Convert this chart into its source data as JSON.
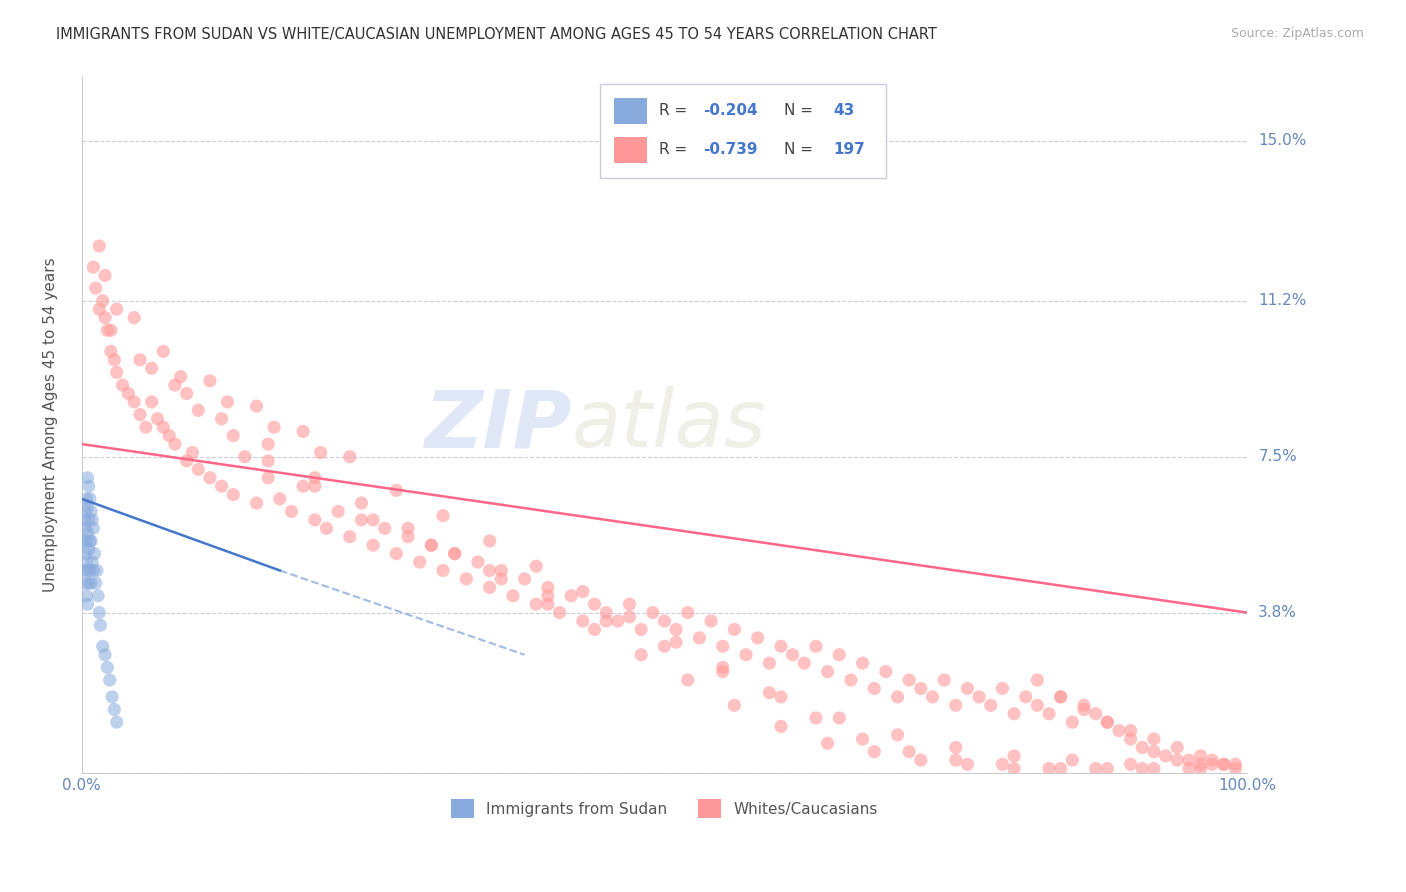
{
  "title": "IMMIGRANTS FROM SUDAN VS WHITE/CAUCASIAN UNEMPLOYMENT AMONG AGES 45 TO 54 YEARS CORRELATION CHART",
  "source": "Source: ZipAtlas.com",
  "ylabel": "Unemployment Among Ages 45 to 54 years",
  "xlim": [
    0.0,
    1.0
  ],
  "ylim": [
    0.0,
    0.165
  ],
  "yticks": [
    0.0,
    0.038,
    0.075,
    0.112,
    0.15
  ],
  "ytick_labels": [
    "",
    "3.8%",
    "7.5%",
    "11.2%",
    "15.0%"
  ],
  "xtick_labels": [
    "0.0%",
    "100.0%"
  ],
  "color_blue": "#88AADD",
  "color_pink": "#FF9999",
  "color_blue_line": "#4477CC",
  "color_pink_line": "#FF6688",
  "color_text_dark": "#444444",
  "color_value_blue": "#4477CC",
  "color_axis_labels": "#6688BB",
  "color_source": "#AAAAAA",
  "watermark_zip": "ZIP",
  "watermark_atlas": "atlas",
  "background_color": "#FFFFFF",
  "grid_color": "#CCCCDD",
  "legend_label1": "Immigrants from Sudan",
  "legend_label2": "Whites/Caucasians",
  "blue_x": [
    0.001,
    0.002,
    0.002,
    0.003,
    0.003,
    0.003,
    0.003,
    0.004,
    0.004,
    0.004,
    0.004,
    0.005,
    0.005,
    0.005,
    0.005,
    0.005,
    0.006,
    0.006,
    0.006,
    0.006,
    0.007,
    0.007,
    0.007,
    0.008,
    0.008,
    0.008,
    0.009,
    0.009,
    0.01,
    0.01,
    0.011,
    0.012,
    0.013,
    0.014,
    0.015,
    0.016,
    0.018,
    0.02,
    0.022,
    0.024,
    0.026,
    0.028,
    0.03
  ],
  "blue_y": [
    0.055,
    0.06,
    0.048,
    0.058,
    0.062,
    0.052,
    0.045,
    0.065,
    0.055,
    0.05,
    0.042,
    0.07,
    0.063,
    0.057,
    0.048,
    0.04,
    0.068,
    0.06,
    0.053,
    0.045,
    0.065,
    0.055,
    0.048,
    0.062,
    0.055,
    0.045,
    0.06,
    0.05,
    0.058,
    0.048,
    0.052,
    0.045,
    0.048,
    0.042,
    0.038,
    0.035,
    0.03,
    0.028,
    0.025,
    0.022,
    0.018,
    0.015,
    0.012
  ],
  "pink_x": [
    0.01,
    0.012,
    0.015,
    0.018,
    0.02,
    0.022,
    0.025,
    0.028,
    0.03,
    0.035,
    0.04,
    0.045,
    0.05,
    0.055,
    0.06,
    0.065,
    0.07,
    0.075,
    0.08,
    0.09,
    0.095,
    0.1,
    0.11,
    0.12,
    0.13,
    0.14,
    0.15,
    0.16,
    0.17,
    0.18,
    0.19,
    0.2,
    0.21,
    0.22,
    0.23,
    0.24,
    0.25,
    0.26,
    0.27,
    0.28,
    0.29,
    0.3,
    0.31,
    0.32,
    0.33,
    0.34,
    0.35,
    0.36,
    0.37,
    0.38,
    0.39,
    0.4,
    0.41,
    0.42,
    0.43,
    0.44,
    0.45,
    0.46,
    0.47,
    0.48,
    0.49,
    0.5,
    0.51,
    0.52,
    0.53,
    0.54,
    0.55,
    0.56,
    0.57,
    0.58,
    0.59,
    0.6,
    0.61,
    0.62,
    0.63,
    0.64,
    0.65,
    0.66,
    0.67,
    0.68,
    0.69,
    0.7,
    0.71,
    0.72,
    0.73,
    0.74,
    0.75,
    0.76,
    0.77,
    0.78,
    0.79,
    0.8,
    0.81,
    0.82,
    0.83,
    0.84,
    0.85,
    0.86,
    0.87,
    0.88,
    0.89,
    0.9,
    0.91,
    0.92,
    0.93,
    0.94,
    0.95,
    0.96,
    0.97,
    0.98,
    0.99,
    0.02,
    0.05,
    0.08,
    0.1,
    0.13,
    0.16,
    0.2,
    0.25,
    0.3,
    0.35,
    0.4,
    0.45,
    0.5,
    0.55,
    0.6,
    0.65,
    0.7,
    0.75,
    0.8,
    0.85,
    0.9,
    0.95,
    0.025,
    0.06,
    0.09,
    0.12,
    0.16,
    0.2,
    0.24,
    0.28,
    0.32,
    0.36,
    0.4,
    0.44,
    0.48,
    0.52,
    0.56,
    0.6,
    0.64,
    0.68,
    0.72,
    0.76,
    0.8,
    0.84,
    0.88,
    0.92,
    0.96,
    0.03,
    0.07,
    0.11,
    0.15,
    0.19,
    0.23,
    0.27,
    0.31,
    0.35,
    0.39,
    0.43,
    0.47,
    0.51,
    0.55,
    0.59,
    0.63,
    0.67,
    0.71,
    0.75,
    0.79,
    0.83,
    0.87,
    0.91,
    0.015,
    0.045,
    0.085,
    0.125,
    0.165,
    0.205,
    0.97,
    0.98,
    0.99,
    0.96,
    0.94,
    0.92,
    0.9,
    0.88,
    0.86,
    0.84,
    0.82
  ],
  "pink_y": [
    0.12,
    0.115,
    0.11,
    0.112,
    0.108,
    0.105,
    0.1,
    0.098,
    0.095,
    0.092,
    0.09,
    0.088,
    0.085,
    0.082,
    0.088,
    0.084,
    0.082,
    0.08,
    0.078,
    0.074,
    0.076,
    0.072,
    0.07,
    0.068,
    0.066,
    0.075,
    0.064,
    0.07,
    0.065,
    0.062,
    0.068,
    0.06,
    0.058,
    0.062,
    0.056,
    0.06,
    0.054,
    0.058,
    0.052,
    0.056,
    0.05,
    0.054,
    0.048,
    0.052,
    0.046,
    0.05,
    0.044,
    0.048,
    0.042,
    0.046,
    0.04,
    0.044,
    0.038,
    0.042,
    0.036,
    0.04,
    0.038,
    0.036,
    0.04,
    0.034,
    0.038,
    0.036,
    0.034,
    0.038,
    0.032,
    0.036,
    0.03,
    0.034,
    0.028,
    0.032,
    0.026,
    0.03,
    0.028,
    0.026,
    0.03,
    0.024,
    0.028,
    0.022,
    0.026,
    0.02,
    0.024,
    0.018,
    0.022,
    0.02,
    0.018,
    0.022,
    0.016,
    0.02,
    0.018,
    0.016,
    0.02,
    0.014,
    0.018,
    0.016,
    0.014,
    0.018,
    0.012,
    0.016,
    0.014,
    0.012,
    0.01,
    0.008,
    0.006,
    0.005,
    0.004,
    0.003,
    0.003,
    0.002,
    0.002,
    0.002,
    0.002,
    0.118,
    0.098,
    0.092,
    0.086,
    0.08,
    0.074,
    0.068,
    0.06,
    0.054,
    0.048,
    0.042,
    0.036,
    0.03,
    0.024,
    0.018,
    0.013,
    0.009,
    0.006,
    0.004,
    0.003,
    0.002,
    0.001,
    0.105,
    0.096,
    0.09,
    0.084,
    0.078,
    0.07,
    0.064,
    0.058,
    0.052,
    0.046,
    0.04,
    0.034,
    0.028,
    0.022,
    0.016,
    0.011,
    0.007,
    0.005,
    0.003,
    0.002,
    0.001,
    0.001,
    0.001,
    0.001,
    0.001,
    0.11,
    0.1,
    0.093,
    0.087,
    0.081,
    0.075,
    0.067,
    0.061,
    0.055,
    0.049,
    0.043,
    0.037,
    0.031,
    0.025,
    0.019,
    0.013,
    0.008,
    0.005,
    0.003,
    0.002,
    0.001,
    0.001,
    0.001,
    0.125,
    0.108,
    0.094,
    0.088,
    0.082,
    0.076,
    0.003,
    0.002,
    0.001,
    0.004,
    0.006,
    0.008,
    0.01,
    0.012,
    0.015,
    0.018,
    0.022
  ]
}
